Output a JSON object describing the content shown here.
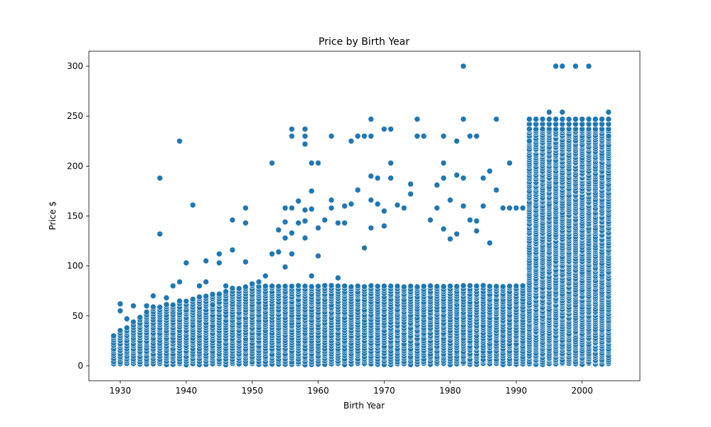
{
  "chart_data": {
    "type": "scatter",
    "title": "Price by Birth Year",
    "xlabel": "Birth Year",
    "ylabel": "Price $",
    "xlim": [
      1925.25,
      2008.75
    ],
    "ylim": [
      -15,
      315
    ],
    "xticks": [
      1930,
      1940,
      1950,
      1960,
      1970,
      1980,
      1990,
      2000
    ],
    "yticks": [
      0,
      50,
      100,
      150,
      200,
      250,
      300
    ],
    "grid": false,
    "marker_color": "#1f77b4",
    "marker_edge": "#ffffff",
    "series": [
      {
        "points": [
          [
            1929,
            30
          ],
          [
            1930,
            62
          ],
          [
            1930,
            55
          ],
          [
            1931,
            47
          ],
          [
            1932,
            60
          ],
          [
            1934,
            60
          ],
          [
            1935,
            70
          ],
          [
            1936,
            188
          ],
          [
            1936,
            132
          ],
          [
            1937,
            68
          ],
          [
            1938,
            80
          ],
          [
            1939,
            225
          ],
          [
            1939,
            84
          ],
          [
            1940,
            103
          ],
          [
            1941,
            161
          ],
          [
            1942,
            80
          ],
          [
            1943,
            84
          ],
          [
            1943,
            105
          ],
          [
            1944,
            61
          ],
          [
            1945,
            112
          ],
          [
            1945,
            103
          ],
          [
            1946,
            80
          ],
          [
            1947,
            146
          ],
          [
            1947,
            116
          ],
          [
            1949,
            158
          ],
          [
            1949,
            143
          ],
          [
            1949,
            104
          ],
          [
            1950,
            82
          ],
          [
            1951,
            84
          ],
          [
            1952,
            90
          ],
          [
            1953,
            203
          ],
          [
            1953,
            112
          ],
          [
            1954,
            136
          ],
          [
            1954,
            114
          ],
          [
            1955,
            158
          ],
          [
            1955,
            144
          ],
          [
            1955,
            128
          ],
          [
            1955,
            99
          ],
          [
            1956,
            237
          ],
          [
            1956,
            230
          ],
          [
            1956,
            158
          ],
          [
            1956,
            133
          ],
          [
            1956,
            112
          ],
          [
            1957,
            165
          ],
          [
            1957,
            143
          ],
          [
            1958,
            237
          ],
          [
            1958,
            230
          ],
          [
            1958,
            222
          ],
          [
            1958,
            156
          ],
          [
            1958,
            145
          ],
          [
            1958,
            128
          ],
          [
            1959,
            203
          ],
          [
            1959,
            175
          ],
          [
            1959,
            157
          ],
          [
            1959,
            90
          ],
          [
            1960,
            203
          ],
          [
            1960,
            138
          ],
          [
            1960,
            110
          ],
          [
            1961,
            146
          ],
          [
            1962,
            230
          ],
          [
            1962,
            166
          ],
          [
            1962,
            158
          ],
          [
            1963,
            143
          ],
          [
            1963,
            88
          ],
          [
            1964,
            160
          ],
          [
            1964,
            143
          ],
          [
            1965,
            225
          ],
          [
            1965,
            162
          ],
          [
            1966,
            230
          ],
          [
            1966,
            176
          ],
          [
            1967,
            230
          ],
          [
            1967,
            118
          ],
          [
            1968,
            247
          ],
          [
            1968,
            230
          ],
          [
            1968,
            190
          ],
          [
            1968,
            166
          ],
          [
            1968,
            138
          ],
          [
            1969,
            188
          ],
          [
            1969,
            162
          ],
          [
            1970,
            237
          ],
          [
            1970,
            155
          ],
          [
            1970,
            140
          ],
          [
            1971,
            237
          ],
          [
            1971,
            203
          ],
          [
            1971,
            188
          ],
          [
            1972,
            161
          ],
          [
            1973,
            158
          ],
          [
            1974,
            182
          ],
          [
            1974,
            172
          ],
          [
            1975,
            247
          ],
          [
            1975,
            230
          ],
          [
            1976,
            230
          ],
          [
            1977,
            146
          ],
          [
            1978,
            181
          ],
          [
            1978,
            158
          ],
          [
            1979,
            230
          ],
          [
            1979,
            203
          ],
          [
            1979,
            188
          ],
          [
            1979,
            137
          ],
          [
            1980,
            166
          ],
          [
            1980,
            127
          ],
          [
            1981,
            225
          ],
          [
            1981,
            191
          ],
          [
            1981,
            132
          ],
          [
            1982,
            300
          ],
          [
            1982,
            247
          ],
          [
            1982,
            188
          ],
          [
            1982,
            160
          ],
          [
            1983,
            230
          ],
          [
            1983,
            146
          ],
          [
            1984,
            230
          ],
          [
            1984,
            145
          ],
          [
            1984,
            135
          ],
          [
            1985,
            188
          ],
          [
            1985,
            160
          ],
          [
            1986,
            195
          ],
          [
            1986,
            123
          ],
          [
            1987,
            247
          ],
          [
            1987,
            176
          ],
          [
            1988,
            158
          ],
          [
            1989,
            203
          ],
          [
            1989,
            158
          ],
          [
            1990,
            158
          ],
          [
            1991,
            158
          ],
          [
            1992,
            247
          ],
          [
            1992,
            237
          ],
          [
            1992,
            225
          ],
          [
            1993,
            247
          ],
          [
            1994,
            237
          ],
          [
            1995,
            254
          ],
          [
            1996,
            300
          ],
          [
            1997,
            300
          ],
          [
            1997,
            254
          ],
          [
            1999,
            300
          ],
          [
            2001,
            300
          ],
          [
            2004,
            254
          ],
          [
            2004,
            247
          ],
          [
            2004,
            230
          ]
        ]
      }
    ]
  }
}
